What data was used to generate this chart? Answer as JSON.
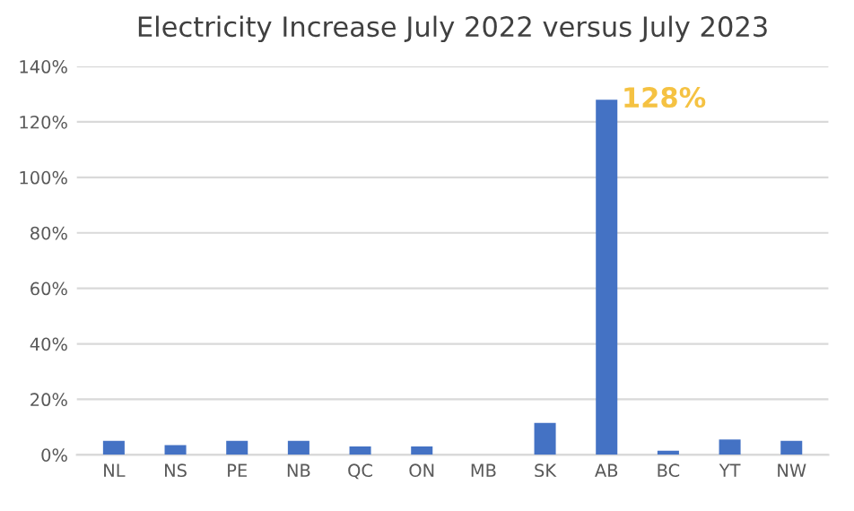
{
  "chart_data": {
    "type": "bar",
    "title": "Electricity Increase July 2022 versus July 2023",
    "categories": [
      "NL",
      "NS",
      "PE",
      "NB",
      "QC",
      "ON",
      "MB",
      "SK",
      "AB",
      "BC",
      "YT",
      "NW"
    ],
    "values": [
      5,
      3.5,
      5,
      5,
      3,
      3,
      0,
      11.5,
      128,
      1.5,
      5.5,
      5
    ],
    "color": "#4472c4",
    "ylim": [
      0,
      140
    ],
    "yticks": [
      {
        "value": 0,
        "label": "0%"
      },
      {
        "value": 20,
        "label": "20%"
      },
      {
        "value": 40,
        "label": "40%"
      },
      {
        "value": 60,
        "label": "60%"
      },
      {
        "value": 80,
        "label": "80%"
      },
      {
        "value": 100,
        "label": "100%"
      },
      {
        "value": 120,
        "label": "120%"
      },
      {
        "value": 140,
        "label": "140%"
      }
    ],
    "grid": "y",
    "annotations": [
      {
        "text": "128%",
        "x": "AB",
        "y": 128
      }
    ]
  }
}
